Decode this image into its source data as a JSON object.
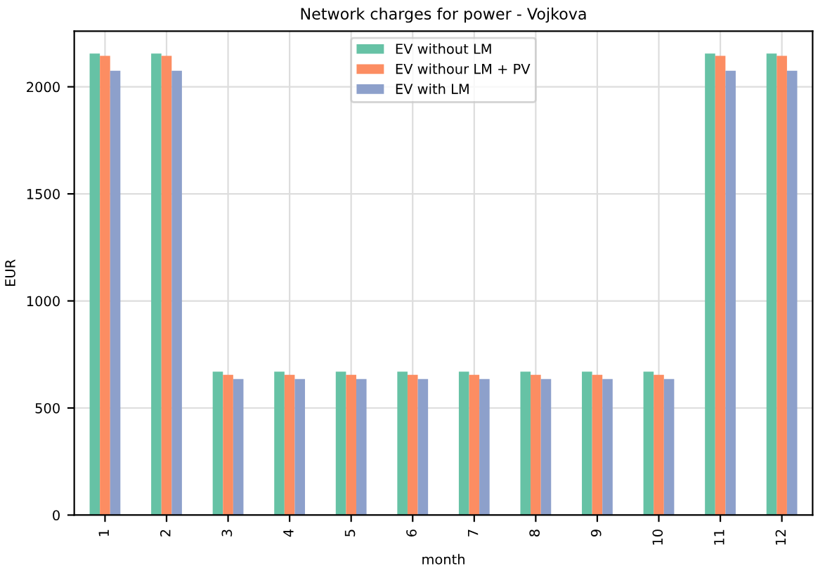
{
  "chart_data": {
    "type": "bar",
    "title": "Network charges for power - Vojkova",
    "xlabel": "month",
    "ylabel": "EUR",
    "categories": [
      "1",
      "2",
      "3",
      "4",
      "5",
      "6",
      "7",
      "8",
      "9",
      "10",
      "11",
      "12"
    ],
    "series": [
      {
        "name": "EV without LM",
        "color": "#66c2a5",
        "values": [
          2155,
          2155,
          670,
          670,
          670,
          670,
          670,
          670,
          670,
          670,
          2155,
          2155
        ]
      },
      {
        "name": "EV withour LM + PV",
        "color": "#fc8d62",
        "values": [
          2145,
          2145,
          655,
          655,
          655,
          655,
          655,
          655,
          655,
          655,
          2145,
          2145
        ]
      },
      {
        "name": "EV with LM",
        "color": "#8da0cb",
        "values": [
          2075,
          2075,
          635,
          635,
          635,
          635,
          635,
          635,
          635,
          635,
          2075,
          2075
        ]
      }
    ],
    "ylim": [
      0,
      2260
    ],
    "yticks": [
      0,
      500,
      1000,
      1500,
      2000
    ],
    "grid": true,
    "legend": "top"
  }
}
